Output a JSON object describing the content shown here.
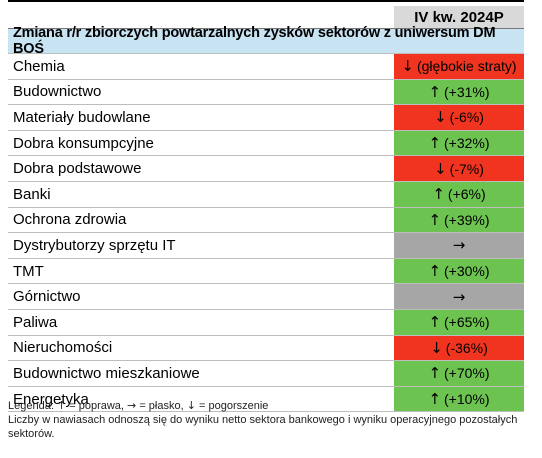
{
  "header": {
    "column_label": "IV kw. 2024P"
  },
  "title": "Zmiana r/r zbiorczych powtarzalnych zysków sektorów z uniwersum DM BOŚ",
  "colors": {
    "green": "#6cc350",
    "red": "#f0341f",
    "gray": "#a6a6a6",
    "header_gray": "#d9d9d9",
    "title_blue": "#c8e3f2"
  },
  "rows": [
    {
      "name": "Chemia",
      "arrow": "↓",
      "value": "(głębokie straty)",
      "status": "red"
    },
    {
      "name": "Budownictwo",
      "arrow": "↑",
      "value": "(+31%)",
      "status": "green"
    },
    {
      "name": "Materiały budowlane",
      "arrow": "↓",
      "value": "(-6%)",
      "status": "red"
    },
    {
      "name": "Dobra konsumpcyjne",
      "arrow": "↑",
      "value": "(+32%)",
      "status": "green"
    },
    {
      "name": "Dobra podstawowe",
      "arrow": "↓",
      "value": "(-7%)",
      "status": "red"
    },
    {
      "name": "Banki",
      "arrow": "↑",
      "value": "(+6%)",
      "status": "green"
    },
    {
      "name": "Ochrona zdrowia",
      "arrow": "↑",
      "value": "(+39%)",
      "status": "green"
    },
    {
      "name": "Dystrybutorzy sprzętu IT",
      "arrow": "→",
      "value": "",
      "status": "gray"
    },
    {
      "name": "TMT",
      "arrow": "↑",
      "value": "(+30%)",
      "status": "green"
    },
    {
      "name": "Górnictwo",
      "arrow": "→",
      "value": "",
      "status": "gray"
    },
    {
      "name": "Paliwa",
      "arrow": "↑",
      "value": "(+65%)",
      "status": "green"
    },
    {
      "name": "Nieruchomości",
      "arrow": "↓",
      "value": "(-36%)",
      "status": "red"
    },
    {
      "name": "Budownictwo mieszkaniowe",
      "arrow": "↑",
      "value": "(+70%)",
      "status": "green"
    },
    {
      "name": "Energetyka",
      "arrow": "↑",
      "value": "(+10%)",
      "status": "green"
    }
  ],
  "legend": {
    "label": "Legenda:",
    "up_arrow": "↑",
    "up_text": "= poprawa,",
    "flat_arrow": "→",
    "flat_text": "= płasko,",
    "down_arrow": "↓",
    "down_text": "= pogorszenie",
    "note": "Liczby w nawiasach odnoszą się do wyniku netto sektora bankowego i wyniku operacyjnego pozostałych sektorów."
  }
}
